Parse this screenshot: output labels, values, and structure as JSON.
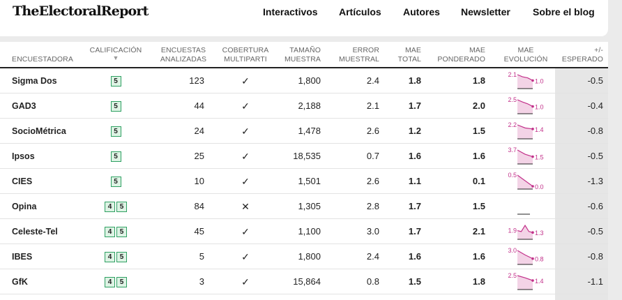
{
  "header": {
    "logo": "TheElectoralReport",
    "nav": [
      "Interactivos",
      "Artículos",
      "Autores",
      "Newsletter",
      "Sobre el blog"
    ]
  },
  "columns": {
    "encuestadora": "ENCUESTADORA",
    "calificacion": "CALIFICACIÓN",
    "sort_arrow": "▼",
    "encuestas_l1": "ENCUESTAS",
    "encuestas_l2": "ANALIZADAS",
    "cobertura_l1": "COBERTURA",
    "cobertura_l2": "MULTIPARTI",
    "tamano_l1": "TAMAÑO",
    "tamano_l2": "MUESTRA",
    "error_l1": "ERROR",
    "error_l2": "MUESTRAL",
    "mae_total_l1": "MAE",
    "mae_total_l2": "TOTAL",
    "mae_pond_l1": "MAE",
    "mae_pond_l2": "PONDERADO",
    "mae_evo_l1": "MAE",
    "mae_evo_l2": "EVOLUCIÓN",
    "esperado_l1": "+/-",
    "esperado_l2": "ESPERADO"
  },
  "colors": {
    "badge_border": "#2ea062",
    "badge_fill": "#ddf3e4",
    "spark_line": "#c2308a",
    "spark_fill": "#f3d3e6",
    "esperado_bg": "#e6e6e6"
  },
  "rows": [
    {
      "name": "Sigma Dos",
      "badges": [
        "5"
      ],
      "encuestas": "123",
      "cobertura": "✓",
      "tamano": "1,800",
      "error": "2.4",
      "mae_total": "1.8",
      "mae_pond": "1.8",
      "evo_start": "2.1",
      "evo_end": "1.0",
      "evo": [
        2.1,
        1.7,
        1.5,
        1.0
      ],
      "esperado": "-0.5"
    },
    {
      "name": "GAD3",
      "badges": [
        "5"
      ],
      "encuestas": "44",
      "cobertura": "✓",
      "tamano": "2,188",
      "error": "2.1",
      "mae_total": "1.7",
      "mae_pond": "2.0",
      "evo_start": "2.5",
      "evo_end": "1.0",
      "evo": [
        2.5,
        2.0,
        1.6,
        1.0
      ],
      "esperado": "-0.4"
    },
    {
      "name": "SocioMétrica",
      "badges": [
        "5"
      ],
      "encuestas": "24",
      "cobertura": "✓",
      "tamano": "1,478",
      "error": "2.6",
      "mae_total": "1.2",
      "mae_pond": "1.5",
      "evo_start": "2.2",
      "evo_end": "1.4",
      "evo": [
        2.2,
        1.6,
        1.4
      ],
      "esperado": "-0.8"
    },
    {
      "name": "Ipsos",
      "badges": [
        "5"
      ],
      "encuestas": "25",
      "cobertura": "✓",
      "tamano": "18,535",
      "error": "0.7",
      "mae_total": "1.6",
      "mae_pond": "1.6",
      "evo_start": "3.7",
      "evo_end": "1.5",
      "evo": [
        3.7,
        2.3,
        1.5
      ],
      "esperado": "-0.5"
    },
    {
      "name": "CIES",
      "badges": [
        "5"
      ],
      "encuestas": "10",
      "cobertura": "✓",
      "tamano": "1,501",
      "error": "2.6",
      "mae_total": "1.1",
      "mae_pond": "0.1",
      "evo_start": "0.5",
      "evo_end": "0.0",
      "evo": [
        0.5,
        0.0
      ],
      "esperado": "-1.3"
    },
    {
      "name": "Opina",
      "badges": [
        "4",
        "5"
      ],
      "encuestas": "84",
      "cobertura": "✕",
      "tamano": "1,305",
      "error": "2.8",
      "mae_total": "1.7",
      "mae_pond": "1.5",
      "evo_start": "",
      "evo_end": "",
      "evo": [],
      "esperado": "-0.6"
    },
    {
      "name": "Celeste-Tel",
      "badges": [
        "4",
        "5"
      ],
      "encuestas": "45",
      "cobertura": "✓",
      "tamano": "1,100",
      "error": "3.0",
      "mae_total": "1.7",
      "mae_pond": "2.1",
      "evo_start": "1.9",
      "evo_end": "1.3",
      "evo": [
        1.9,
        1.6,
        3.6,
        1.6,
        1.3
      ],
      "esperado": "-0.5"
    },
    {
      "name": "IBES",
      "badges": [
        "4",
        "5"
      ],
      "encuestas": "5",
      "cobertura": "✓",
      "tamano": "1,800",
      "error": "2.4",
      "mae_total": "1.6",
      "mae_pond": "1.6",
      "evo_start": "3.0",
      "evo_end": "0.8",
      "evo": [
        3.0,
        1.8,
        0.8
      ],
      "esperado": "-0.8"
    },
    {
      "name": "GfK",
      "badges": [
        "4",
        "5"
      ],
      "encuestas": "3",
      "cobertura": "✓",
      "tamano": "15,864",
      "error": "0.8",
      "mae_total": "1.5",
      "mae_pond": "1.8",
      "evo_start": "2.5",
      "evo_end": "1.4",
      "evo": [
        2.5,
        2.0,
        1.4
      ],
      "esperado": "-1.1"
    }
  ]
}
